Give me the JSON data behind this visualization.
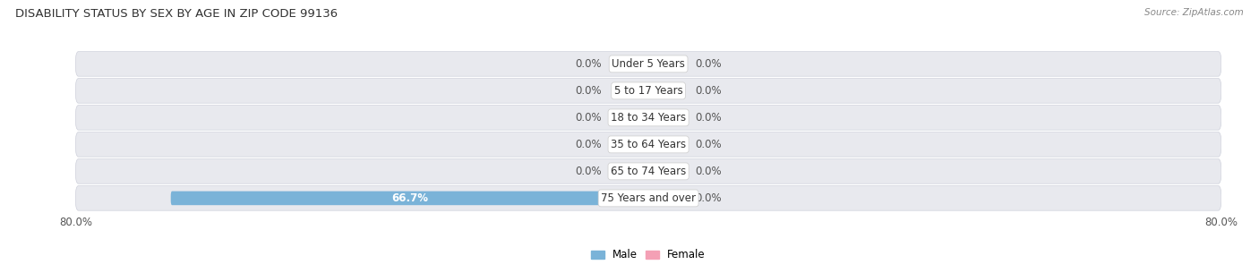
{
  "title": "DISABILITY STATUS BY SEX BY AGE IN ZIP CODE 99136",
  "source": "Source: ZipAtlas.com",
  "categories": [
    "Under 5 Years",
    "5 to 17 Years",
    "18 to 34 Years",
    "35 to 64 Years",
    "65 to 74 Years",
    "75 Years and over"
  ],
  "male_values": [
    0.0,
    0.0,
    0.0,
    0.0,
    0.0,
    66.7
  ],
  "female_values": [
    0.0,
    0.0,
    0.0,
    0.0,
    0.0,
    0.0
  ],
  "male_color": "#7ab3d8",
  "female_color": "#f4a0b5",
  "row_bg_color": "#e8e9ee",
  "row_bg_edge_color": "#d0d2dc",
  "axis_limit": 80.0,
  "label_fontsize": 8.5,
  "title_fontsize": 9.5,
  "bar_height": 0.52,
  "nub_size": 5.0,
  "background_color": "#ffffff",
  "zero_label_color": "#555555",
  "value_label_color": "#ffffff"
}
